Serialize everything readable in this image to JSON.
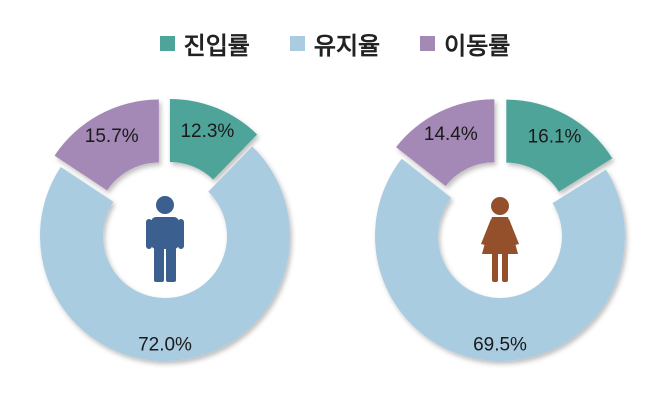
{
  "chart_data": [
    {
      "type": "pie",
      "categories": [
        "진입률",
        "유지율",
        "이동률"
      ],
      "values": [
        12.3,
        72.0,
        15.7
      ],
      "labels": [
        "12.3%",
        "72.0%",
        "15.7%"
      ],
      "exploded": [
        "진입률",
        "이동률"
      ],
      "donut": true,
      "center_icon": "male-person-icon"
    },
    {
      "type": "pie",
      "categories": [
        "진입률",
        "유지율",
        "이동률"
      ],
      "values": [
        16.1,
        69.5,
        14.4
      ],
      "labels": [
        "16.1%",
        "69.5%",
        "14.4%"
      ],
      "exploded": [
        "진입률",
        "이동률"
      ],
      "donut": true,
      "center_icon": "female-person-icon"
    }
  ],
  "legend": {
    "placement": "top-center",
    "items": [
      {
        "label": "진입률",
        "color": "#4fa49a"
      },
      {
        "label": "유지율",
        "color": "#a9cce1"
      },
      {
        "label": "이동률",
        "color": "#a488b5"
      }
    ]
  },
  "colors": {
    "entry": "#4fa49a",
    "retain": "#a9cce1",
    "move": "#a488b5",
    "male": "#3b5f8f",
    "female": "#93502b"
  }
}
